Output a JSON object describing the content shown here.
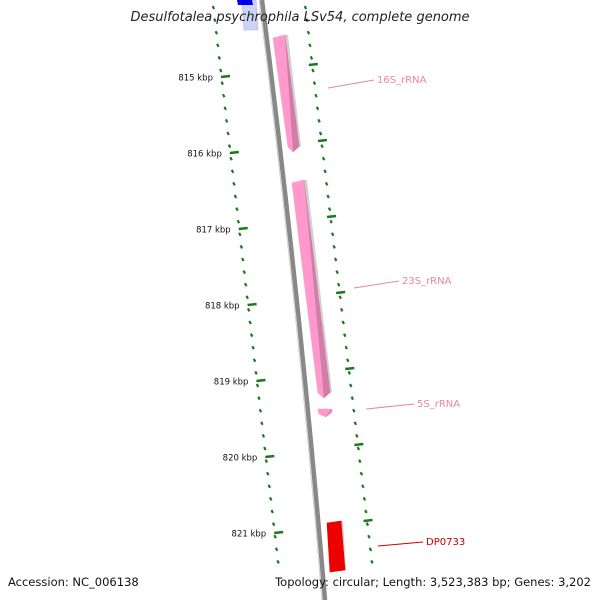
{
  "title": "Desulfotalea psychrophila LSv54, complete genome",
  "accession": "Accession: NC_006138",
  "topology": "Topology: circular; Length: 3,523,383 bp; Genes: 3,202",
  "backbone_color": "#888888",
  "tick_color": "#1a7a1a",
  "ticks": [
    {
      "label": "815 kbp"
    },
    {
      "label": "816 kbp"
    },
    {
      "label": "817 kbp"
    },
    {
      "label": "818 kbp"
    },
    {
      "label": "819 kbp"
    },
    {
      "label": "820 kbp"
    },
    {
      "label": "821 kbp"
    }
  ],
  "features": [
    {
      "name": "16S_rRNA",
      "color": "#ff99cc",
      "label_color": "#e8889a"
    },
    {
      "name": "23S_rRNA",
      "color": "#ff99cc",
      "label_color": "#e8889a"
    },
    {
      "name": "5S_rRNA",
      "color": "#ff99cc",
      "label_color": "#e8889a"
    },
    {
      "name": "DP0733",
      "color": "#ee0000",
      "label_color": "#cc0000"
    }
  ],
  "top_feature_color": "#0000ee"
}
